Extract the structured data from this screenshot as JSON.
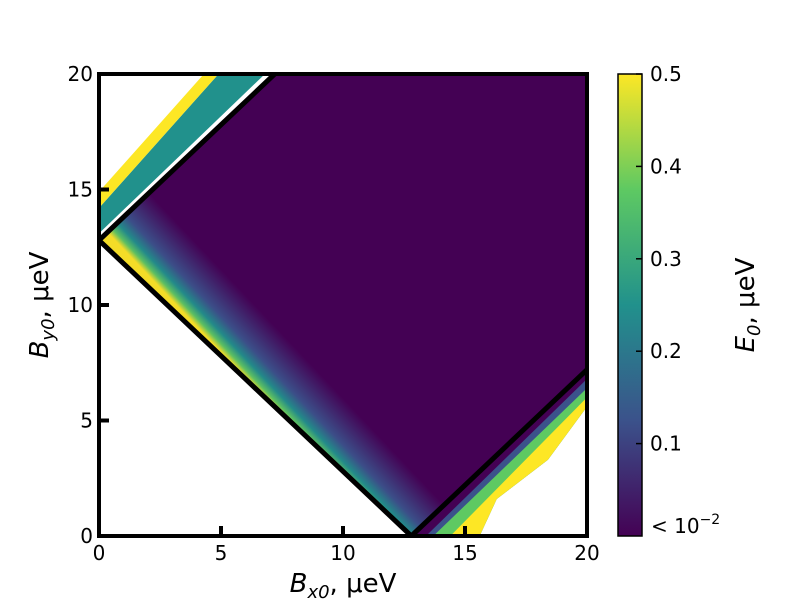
{
  "chart_data": {
    "type": "heatmap",
    "title": "",
    "xlabel": {
      "symbol": "B",
      "subscript": "x0",
      "unit": ", μeV"
    },
    "ylabel": {
      "symbol": "B",
      "subscript": "y0",
      "unit": ", μeV"
    },
    "xlim": [
      0,
      20
    ],
    "ylim": [
      0,
      20
    ],
    "x_ticks": [
      0,
      5,
      10,
      15,
      20
    ],
    "y_ticks": [
      0,
      5,
      10,
      15,
      20
    ],
    "x_tick_labels": [
      "0",
      "5",
      "10",
      "15",
      "20"
    ],
    "y_tick_labels": [
      "0",
      "5",
      "10",
      "15",
      "20"
    ],
    "grid": false,
    "colormap": "viridis",
    "colormap_stops": [
      "#440154",
      "#3b528b",
      "#21918c",
      "#5ec962",
      "#fde725"
    ],
    "background": "#ffffff",
    "boundary_lines": [
      {
        "name": "left-descending",
        "points": [
          [
            0,
            12.8
          ],
          [
            12.8,
            0
          ]
        ]
      },
      {
        "name": "left-ascending",
        "points": [
          [
            0,
            12.8
          ],
          [
            7.2,
            20
          ]
        ]
      },
      {
        "name": "right-ascending",
        "points": [
          [
            12.8,
            0
          ],
          [
            20,
            7.2
          ]
        ]
      }
    ],
    "colorbar": {
      "label": {
        "symbol": "E",
        "subscript": "0",
        "unit": ", μeV"
      },
      "range": [
        0,
        0.5
      ],
      "ticks": [
        0.1,
        0.2,
        0.3,
        0.4,
        0.5
      ],
      "tick_labels": [
        "0.1",
        "0.2",
        "0.3",
        "0.4",
        "0.5"
      ],
      "min_label": {
        "base": "< 10",
        "exponent": "−2"
      }
    }
  }
}
